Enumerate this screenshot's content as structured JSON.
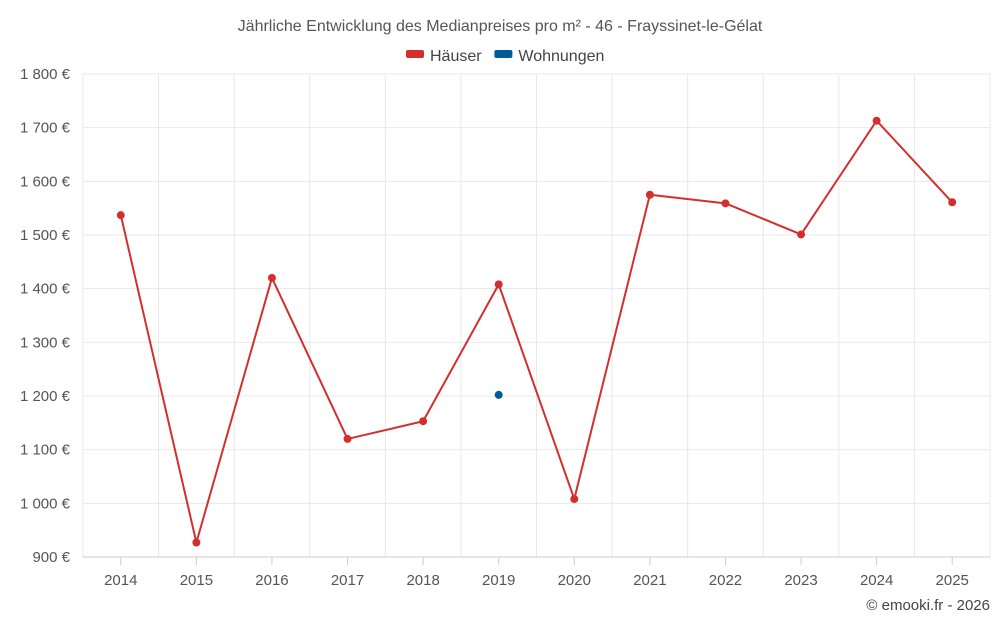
{
  "chart_data": {
    "type": "line",
    "title": "Jährliche Entwicklung des Medianpreises pro m² - 46 - Frayssinet-le-Gélat",
    "categories": [
      "2014",
      "2015",
      "2016",
      "2017",
      "2018",
      "2019",
      "2020",
      "2021",
      "2022",
      "2023",
      "2024",
      "2025"
    ],
    "series": [
      {
        "name": "Häuser",
        "color": "#d32f2f",
        "values": [
          1537,
          927,
          1420,
          1120,
          1153,
          1408,
          1008,
          1575,
          1559,
          1501,
          1713,
          1561
        ]
      },
      {
        "name": "Wohnungen",
        "color": "#005b96",
        "values": [
          null,
          null,
          null,
          null,
          null,
          1202,
          null,
          null,
          null,
          null,
          null,
          null
        ]
      }
    ],
    "ylim": [
      900,
      1800
    ],
    "yticks": [
      900,
      1000,
      1100,
      1200,
      1300,
      1400,
      1500,
      1600,
      1700,
      1800
    ],
    "ytick_labels": [
      "900 €",
      "1 000 €",
      "1 100 €",
      "1 200 €",
      "1 300 €",
      "1 400 €",
      "1 500 €",
      "1 600 €",
      "1 700 €",
      "1 800 €"
    ],
    "grid": true,
    "legend_position": "top-center",
    "xlabel": "",
    "ylabel": ""
  },
  "credit": "© emooki.fr - 2026"
}
